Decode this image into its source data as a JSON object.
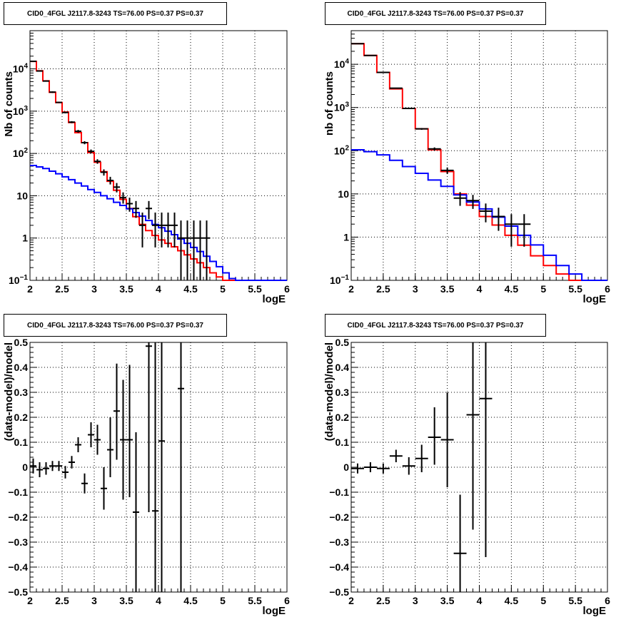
{
  "panels": [
    {
      "title": "CID0_4FGL J2117.8-3243 TS=76.00 PS=0.37 PS=0.37",
      "xlabel": "logE",
      "ylabel": "Nb of counts"
    },
    {
      "title": "CID0_4FGL J2117.8-3243 TS=76.00 PS=0.37 PS=0.37",
      "xlabel": "logE",
      "ylabel": "nb of counts"
    },
    {
      "title": "CID0_4FGL J2117.8-3243 TS=76.00 PS=0.37 PS=0.37",
      "xlabel": "logE",
      "ylabel": "(data-model)/model"
    },
    {
      "title": "CID0_4FGL J2117.8-3243 TS=76.00 PS=0.37 PS=0.37",
      "xlabel": "logE",
      "ylabel": "(data-model)/model"
    }
  ],
  "colors": {
    "total_model": "#ff0000",
    "background_model": "#0000ff",
    "data": "#000000",
    "grid": "#000000"
  },
  "chart_data": [
    {
      "type": "line",
      "title": "CID0_4FGL J2117.8-3243 TS=76.00 PS=0.37 PS=0.37",
      "xlabel": "logE",
      "ylabel": "Nb of counts",
      "xlim": [
        2,
        6
      ],
      "ylim": [
        0.1,
        80000
      ],
      "yscale": "log",
      "grid": true,
      "x_ticks": [
        "2",
        "2.5",
        "3",
        "3.5",
        "4",
        "4.5",
        "5",
        "5.5",
        "6"
      ],
      "y_ticks": [
        {
          "v": 0.1,
          "label": "10",
          "sup": "−1"
        },
        {
          "v": 1,
          "label": "1",
          "sup": ""
        },
        {
          "v": 10,
          "label": "10",
          "sup": ""
        },
        {
          "v": 100,
          "label": "10",
          "sup": "2"
        },
        {
          "v": 1000,
          "label": "10",
          "sup": "3"
        },
        {
          "v": 10000,
          "label": "10",
          "sup": "4"
        }
      ],
      "bin_width": 0.1,
      "series": [
        {
          "style": "step",
          "color": "#ff0000",
          "x": [
            2.05,
            2.15,
            2.25,
            2.35,
            2.45,
            2.55,
            2.65,
            2.75,
            2.85,
            2.95,
            3.05,
            3.15,
            3.25,
            3.35,
            3.45,
            3.55,
            3.65,
            3.75,
            3.85,
            3.95,
            4.05,
            4.15,
            4.25,
            4.35,
            4.45,
            4.55,
            4.65,
            4.75,
            4.85,
            4.95,
            5.05,
            5.15,
            5.25,
            5.35,
            5.45,
            5.55,
            5.65,
            5.75,
            5.85,
            5.95
          ],
          "values": [
            15000,
            9000,
            5200,
            2800,
            1600,
            950,
            540,
            310,
            180,
            105,
            62,
            37,
            22,
            13.5,
            8.2,
            5.0,
            3.2,
            2.1,
            1.5,
            1.15,
            0.9,
            0.75,
            0.62,
            0.5,
            0.4,
            0.32,
            0.26,
            0.2,
            0.15,
            0.12,
            0.1,
            0.1,
            0.1,
            0.1,
            0.1,
            0.1,
            0.1,
            0.1,
            0.1,
            0.1
          ]
        },
        {
          "style": "step",
          "color": "#0000ff",
          "x": [
            2.05,
            2.15,
            2.25,
            2.35,
            2.45,
            2.55,
            2.65,
            2.75,
            2.85,
            2.95,
            3.05,
            3.15,
            3.25,
            3.35,
            3.45,
            3.55,
            3.65,
            3.75,
            3.85,
            3.95,
            4.05,
            4.15,
            4.25,
            4.35,
            4.45,
            4.55,
            4.65,
            4.75,
            4.85,
            4.95,
            5.05,
            5.15,
            5.25,
            5.35,
            5.45,
            5.55,
            5.65,
            5.75,
            5.85,
            5.95
          ],
          "values": [
            52,
            48,
            44,
            38,
            33,
            28,
            24,
            20,
            17,
            14,
            12,
            10,
            8.5,
            7,
            5.9,
            4.9,
            4.0,
            3.3,
            2.6,
            2.1,
            1.75,
            1.45,
            1.2,
            0.95,
            0.75,
            0.6,
            0.48,
            0.37,
            0.28,
            0.21,
            0.15,
            0.11,
            0.1,
            0.1,
            0.1,
            0.1,
            0.1,
            0.1,
            0.1,
            0.1
          ]
        },
        {
          "style": "errorbar",
          "color": "#000000",
          "x": [
            2.05,
            2.15,
            2.25,
            2.35,
            2.45,
            2.55,
            2.65,
            2.75,
            2.85,
            2.95,
            3.05,
            3.15,
            3.25,
            3.35,
            3.45,
            3.55,
            3.65,
            3.75,
            3.85,
            3.95,
            4.05,
            4.15,
            4.25,
            4.35,
            4.45,
            4.55,
            4.65,
            4.75
          ],
          "values": [
            15100,
            8900,
            5150,
            2820,
            1610,
            930,
            550,
            335,
            180,
            112,
            65,
            36,
            23,
            16,
            9,
            6.5,
            5,
            2,
            5,
            2,
            2,
            2,
            2,
            1,
            1,
            1,
            1,
            1
          ],
          "ylow": [
            14850,
            8700,
            5000,
            2700,
            1550,
            890,
            520,
            310,
            165,
            100,
            57,
            30,
            18.5,
            12,
            6.5,
            4.2,
            3,
            0.6,
            2.8,
            0.6,
            0.6,
            0.6,
            0.6,
            0.1,
            0.1,
            0.1,
            0.1,
            0.1
          ],
          "yhigh": [
            15350,
            9100,
            5300,
            2930,
            1670,
            970,
            580,
            360,
            195,
            124,
            73,
            42,
            28,
            20,
            12,
            9,
            7.5,
            4,
            7.5,
            4,
            4,
            4,
            4,
            2.6,
            2.6,
            2.6,
            2.6,
            2.6
          ]
        }
      ]
    },
    {
      "type": "line",
      "title": "CID0_4FGL J2117.8-3243 TS=76.00 PS=0.37 PS=0.37",
      "xlabel": "logE",
      "ylabel": "nb of counts",
      "xlim": [
        2,
        6
      ],
      "ylim": [
        0.1,
        60000
      ],
      "yscale": "log",
      "grid": true,
      "x_ticks": [
        "2",
        "2.5",
        "3",
        "3.5",
        "4",
        "4.5",
        "5",
        "5.5",
        "6"
      ],
      "y_ticks": [
        {
          "v": 0.1,
          "label": "10",
          "sup": "−1"
        },
        {
          "v": 1,
          "label": "1",
          "sup": ""
        },
        {
          "v": 10,
          "label": "10",
          "sup": ""
        },
        {
          "v": 100,
          "label": "10",
          "sup": "2"
        },
        {
          "v": 1000,
          "label": "10",
          "sup": "3"
        },
        {
          "v": 10000,
          "label": "10",
          "sup": "4"
        }
      ],
      "bin_width": 0.2,
      "series": [
        {
          "style": "step",
          "color": "#ff0000",
          "x": [
            2.1,
            2.3,
            2.5,
            2.7,
            2.9,
            3.1,
            3.3,
            3.5,
            3.7,
            3.9,
            4.1,
            4.3,
            4.5,
            4.7,
            4.9,
            5.1,
            5.3,
            5.5,
            5.7,
            5.9
          ],
          "values": [
            30000,
            16000,
            6500,
            2700,
            950,
            320,
            105,
            33,
            10,
            5.5,
            3.0,
            1.9,
            1.1,
            0.65,
            0.37,
            0.22,
            0.14,
            0.1,
            0.1,
            0.1
          ]
        },
        {
          "style": "step",
          "color": "#0000ff",
          "x": [
            2.1,
            2.3,
            2.5,
            2.7,
            2.9,
            3.1,
            3.3,
            3.5,
            3.7,
            3.9,
            4.1,
            4.3,
            4.5,
            4.7,
            4.9,
            5.1,
            5.3,
            5.5,
            5.7,
            5.9
          ],
          "values": [
            105,
            95,
            80,
            60,
            43,
            30,
            21,
            15,
            9.5,
            6.5,
            4.5,
            2.9,
            1.8,
            1.1,
            0.66,
            0.38,
            0.22,
            0.14,
            0.1,
            0.1
          ]
        },
        {
          "style": "errorbar",
          "color": "#000000",
          "x": [
            2.1,
            2.3,
            2.5,
            2.7,
            2.9,
            3.1,
            3.3,
            3.5,
            3.7,
            3.9,
            4.1,
            4.3,
            4.5,
            4.7
          ],
          "values": [
            30000,
            16000,
            6500,
            2800,
            950,
            320,
            110,
            35,
            8,
            7,
            4,
            3,
            2,
            2
          ],
          "ylow": [
            29700,
            15800,
            6400,
            2750,
            930,
            305,
            101,
            29,
            5.3,
            4.5,
            2.2,
            1.4,
            0.6,
            0.6
          ],
          "yhigh": [
            30300,
            16200,
            6600,
            2850,
            970,
            335,
            119,
            41,
            11,
            9.5,
            6,
            4.8,
            3.4,
            3.4
          ]
        }
      ]
    },
    {
      "type": "scatter",
      "title": "CID0_4FGL J2117.8-3243 TS=76.00 PS=0.37 PS=0.37",
      "xlabel": "logE",
      "ylabel": "(data-model)/model",
      "xlim": [
        2,
        6
      ],
      "ylim": [
        -0.5,
        0.5
      ],
      "grid": true,
      "x_ticks": [
        "2",
        "2.5",
        "3",
        "3.5",
        "4",
        "4.5",
        "5",
        "5.5",
        "6"
      ],
      "y_ticks": [
        {
          "v": -0.5,
          "label": "−0.5"
        },
        {
          "v": -0.4,
          "label": "−0.4"
        },
        {
          "v": -0.3,
          "label": "−0.3"
        },
        {
          "v": -0.2,
          "label": "−0.2"
        },
        {
          "v": -0.1,
          "label": "−0.1"
        },
        {
          "v": 0,
          "label": "0"
        },
        {
          "v": 0.1,
          "label": "0.1"
        },
        {
          "v": 0.2,
          "label": "0.2"
        },
        {
          "v": 0.3,
          "label": "0.3"
        },
        {
          "v": 0.4,
          "label": "0.4"
        },
        {
          "v": 0.5,
          "label": "0.5"
        }
      ],
      "bin_width": 0.1,
      "series": [
        {
          "style": "errorbar",
          "color": "#000000",
          "x": [
            2.05,
            2.15,
            2.25,
            2.35,
            2.45,
            2.55,
            2.65,
            2.75,
            2.85,
            2.95,
            3.05,
            3.15,
            3.25,
            3.35,
            3.45,
            3.55,
            3.65,
            3.85,
            3.95,
            4.05,
            4.35
          ],
          "values": [
            0.005,
            -0.01,
            -0.005,
            0.005,
            0.005,
            -0.02,
            0.02,
            0.09,
            -0.065,
            0.13,
            0.11,
            -0.085,
            0.07,
            0.225,
            0.11,
            0.11,
            -0.18,
            0.485,
            -0.175,
            0.105,
            0.315
          ],
          "ylow": [
            -0.025,
            -0.04,
            -0.03,
            -0.015,
            -0.015,
            -0.045,
            -0.005,
            0.06,
            -0.105,
            0.08,
            0.05,
            -0.17,
            -0.04,
            0.03,
            -0.13,
            -0.12,
            -0.5,
            -0.18,
            -0.5,
            -0.5,
            -0.5
          ],
          "yhigh": [
            0.035,
            0.02,
            0.02,
            0.025,
            0.025,
            0.005,
            0.045,
            0.12,
            -0.025,
            0.18,
            0.17,
            0.0,
            0.2,
            0.415,
            0.35,
            0.41,
            0.14,
            0.5,
            0.5,
            0.5,
            0.5
          ]
        }
      ]
    },
    {
      "type": "scatter",
      "title": "CID0_4FGL J2117.8-3243 TS=76.00 PS=0.37 PS=0.37",
      "xlabel": "logE",
      "ylabel": "(data-model)/model",
      "xlim": [
        2,
        6
      ],
      "ylim": [
        -0.5,
        0.5
      ],
      "grid": true,
      "x_ticks": [
        "2",
        "2.5",
        "3",
        "3.5",
        "4",
        "4.5",
        "5",
        "5.5",
        "6"
      ],
      "y_ticks": [
        {
          "v": -0.5,
          "label": "−0.5"
        },
        {
          "v": -0.4,
          "label": "−0.4"
        },
        {
          "v": -0.3,
          "label": "−0.3"
        },
        {
          "v": -0.2,
          "label": "−0.2"
        },
        {
          "v": -0.1,
          "label": "−0.1"
        },
        {
          "v": 0,
          "label": "0"
        },
        {
          "v": 0.1,
          "label": "0.1"
        },
        {
          "v": 0.2,
          "label": "0.2"
        },
        {
          "v": 0.3,
          "label": "0.3"
        },
        {
          "v": 0.4,
          "label": "0.4"
        },
        {
          "v": 0.5,
          "label": "0.5"
        }
      ],
      "bin_width": 0.2,
      "series": [
        {
          "style": "errorbar",
          "color": "#000000",
          "x": [
            2.1,
            2.3,
            2.5,
            2.7,
            2.9,
            3.1,
            3.3,
            3.5,
            3.7,
            3.9,
            4.1
          ],
          "values": [
            -0.005,
            -0.0,
            -0.005,
            0.045,
            0.005,
            0.035,
            0.12,
            0.11,
            -0.345,
            0.21,
            0.275
          ],
          "ylow": [
            -0.025,
            -0.02,
            -0.025,
            0.02,
            -0.03,
            -0.02,
            0.01,
            -0.08,
            -0.5,
            -0.25,
            -0.36
          ],
          "yhigh": [
            0.015,
            0.02,
            0.015,
            0.07,
            0.04,
            0.09,
            0.24,
            0.3,
            -0.11,
            0.5,
            0.5
          ]
        }
      ]
    }
  ]
}
